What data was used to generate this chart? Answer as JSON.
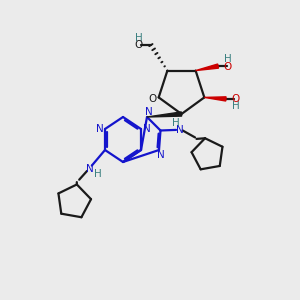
{
  "bg_color": "#ebebeb",
  "bond_color": "#1a1a1a",
  "blue_color": "#1414cc",
  "red_color": "#cc0000",
  "teal_color": "#3a8080",
  "line_width": 1.6,
  "fig_w": 3.0,
  "fig_h": 3.0,
  "dpi": 100,
  "xlim": [
    0,
    10
  ],
  "ylim": [
    0,
    10
  ]
}
